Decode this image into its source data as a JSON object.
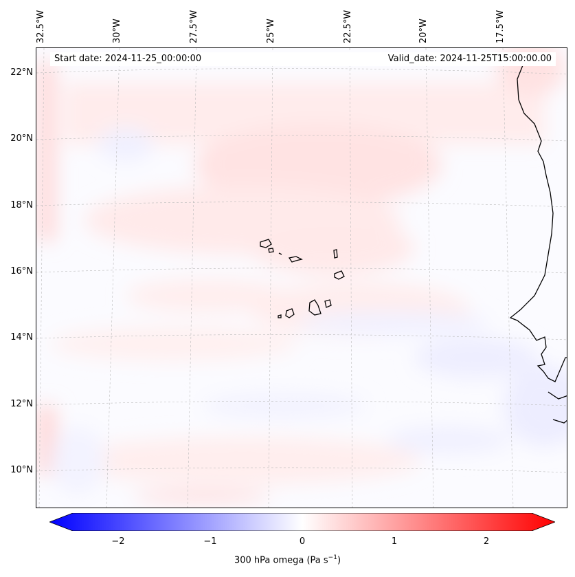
{
  "map": {
    "variable_label": "300 hPa omega (Pa s",
    "unit_superscript": "−1",
    "unit_close": ")",
    "start_date": "Start date: 2024-11-25_00:00:00",
    "valid_date": "Valid_date: 2024-11-25T15:00:00.00",
    "longitude_labels": [
      "32.5°W",
      "30°W",
      "27.5°W",
      "25°W",
      "22.5°W",
      "20°W",
      "17.5°W"
    ],
    "latitude_labels": [
      "22°N",
      "20°N",
      "18°N",
      "16°N",
      "14°N",
      "12°N",
      "10°N"
    ],
    "colorbar_ticks": [
      "−2",
      "−1",
      "0",
      "1",
      "2"
    ],
    "colormap": {
      "negative": "#0000ff",
      "zero": "#ffffff",
      "positive": "#ff0000"
    },
    "colorbar_range": [
      -2.6,
      2.6
    ]
  }
}
